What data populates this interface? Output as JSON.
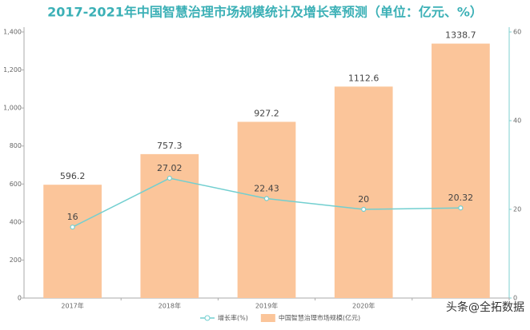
{
  "chart_data": {
    "type": "bar",
    "title": "2017-2021年中国智慧治理市场规模统计及增长率预测（单位：亿元、%）",
    "categories": [
      "2017年",
      "2018年",
      "2019年",
      "2020年",
      null
    ],
    "series": [
      {
        "name": "中国智慧治理市场规模(亿元)",
        "type": "bar",
        "color": "#fbc59a",
        "values": [
          596.2,
          757.3,
          927.2,
          1112.6,
          1338.7
        ]
      },
      {
        "name": "增长率(%)",
        "type": "line",
        "axis": "y2",
        "color": "#72cfd0",
        "values": [
          16,
          27.02,
          22.43,
          20,
          20.32
        ]
      }
    ],
    "ylim": [
      0,
      1400
    ],
    "yticks": [
      0,
      200,
      400,
      600,
      800,
      {
        "value": 1000,
        "label": "1,000"
      },
      {
        "value": 1200,
        "label": "1,200"
      },
      {
        "value": 1400,
        "label": "1,400"
      }
    ],
    "y2lim": [
      0,
      60
    ],
    "y2ticks": [
      0,
      20,
      40,
      60
    ],
    "grid": false,
    "legend": "bottom",
    "watermark": "头条@全拓数据"
  }
}
